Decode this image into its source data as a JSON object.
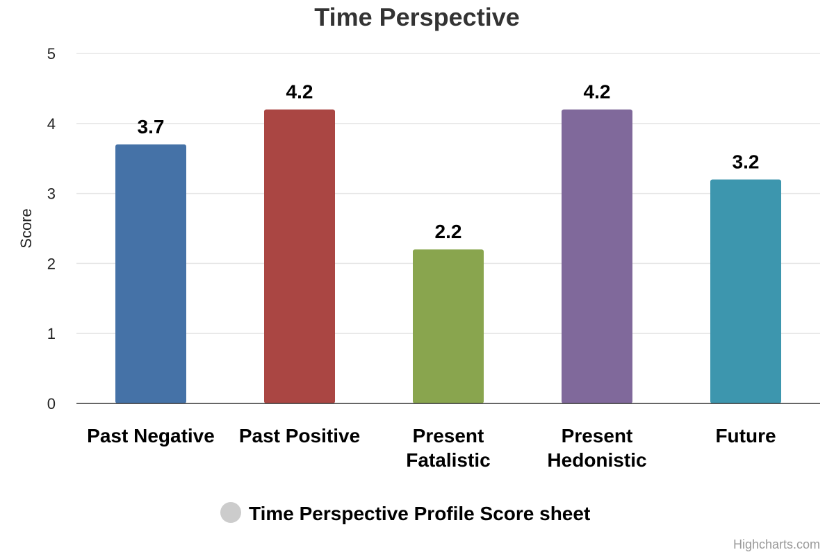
{
  "chart_data": {
    "type": "bar",
    "title": "Time Perspective",
    "ylabel": "Score",
    "xlabel": "",
    "ylim": [
      0,
      5
    ],
    "yticks": [
      0,
      1,
      2,
      3,
      4,
      5
    ],
    "grid": true,
    "legend_position": "bottom",
    "categories": [
      [
        "Past Negative"
      ],
      [
        "Past Positive"
      ],
      [
        "Present",
        "Fatalistic"
      ],
      [
        "Present",
        "Hedonistic"
      ],
      [
        "Future"
      ]
    ],
    "series": [
      {
        "name": "Time Perspective Profile Score sheet",
        "values": [
          3.7,
          4.2,
          2.2,
          4.2,
          3.2
        ],
        "colors": [
          "#4572A7",
          "#AA4643",
          "#89A54E",
          "#80699B",
          "#3D96AE"
        ],
        "legend_color": "#cccccc"
      }
    ],
    "credits": "Highcharts.com"
  }
}
